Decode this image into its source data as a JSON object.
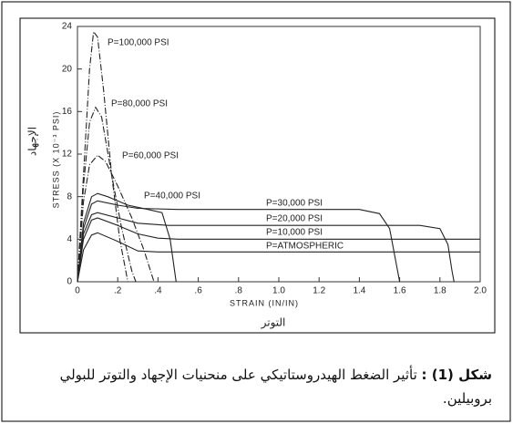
{
  "chart_data": {
    "type": "line",
    "xlabel": "STRAIN (IN/IN)",
    "ylabel": "STRESS (X 10⁻³ PSI)",
    "xlabel_ar": "التوتر",
    "ylabel_ar": "الإجهاد",
    "xlim": [
      0,
      2.0
    ],
    "ylim": [
      0,
      24
    ],
    "xticks": [
      0,
      {
        "value": 0.2,
        "label": ".2"
      },
      {
        "value": 0.4,
        "label": ".4"
      },
      {
        "value": 0.6,
        "label": ".6"
      },
      {
        "value": 0.8,
        "label": ".8"
      },
      {
        "value": 1.0,
        "label": "1.0"
      },
      {
        "value": 1.2,
        "label": "1.2"
      },
      {
        "value": 1.4,
        "label": "1.4"
      },
      {
        "value": 1.6,
        "label": "1.6"
      },
      {
        "value": 1.8,
        "label": "1.8"
      },
      {
        "value": 2.0,
        "label": "2.0"
      }
    ],
    "yticks": [
      0,
      4,
      8,
      12,
      16,
      20,
      24
    ],
    "series": [
      {
        "name": "P=100,000 PSI",
        "color": "#222222",
        "dashed": true,
        "x": [
          0,
          0.03,
          0.06,
          0.08,
          0.1,
          0.13,
          0.17,
          0.21,
          0.25
        ],
        "values": [
          0,
          10,
          20,
          23.5,
          23,
          18,
          10,
          4,
          0
        ]
      },
      {
        "name": "P=80,000 PSI",
        "color": "#222222",
        "dashed": true,
        "x": [
          0,
          0.03,
          0.06,
          0.09,
          0.12,
          0.17,
          0.22,
          0.27,
          0.29
        ],
        "values": [
          0,
          9,
          15,
          16.4,
          15.5,
          10,
          5,
          1,
          0
        ]
      },
      {
        "name": "P=60,000 PSI",
        "color": "#222222",
        "dashed": true,
        "x": [
          0,
          0.03,
          0.06,
          0.1,
          0.14,
          0.2,
          0.27,
          0.33,
          0.38
        ],
        "values": [
          0,
          7.5,
          11,
          11.9,
          11.3,
          9,
          6,
          3,
          0
        ]
      },
      {
        "name": "P=40,000 PSI",
        "color": "#222222",
        "dashed": false,
        "x": [
          0,
          0.03,
          0.07,
          0.1,
          0.15,
          0.25,
          0.35,
          0.42,
          0.46,
          0.49
        ],
        "values": [
          0,
          5.5,
          8,
          8.3,
          8,
          7.2,
          6.8,
          6.5,
          4,
          0
        ]
      },
      {
        "name": "P=30,000 PSI",
        "color": "#222222",
        "dashed": false,
        "x": [
          0,
          0.03,
          0.07,
          0.1,
          0.2,
          0.3,
          0.5,
          1.4,
          1.5,
          1.55,
          1.58,
          1.6
        ],
        "values": [
          0,
          5,
          7.3,
          7.6,
          7.2,
          6.9,
          6.8,
          6.8,
          6.4,
          5,
          2,
          0
        ]
      },
      {
        "name": "P=20,000 PSI",
        "color": "#222222",
        "dashed": false,
        "x": [
          0,
          0.03,
          0.07,
          0.1,
          0.2,
          0.3,
          0.45,
          1.7,
          1.8,
          1.84,
          1.86,
          1.87
        ],
        "values": [
          0,
          4.5,
          6.3,
          6.5,
          6,
          5.5,
          5.3,
          5.3,
          5,
          3.5,
          1,
          0
        ]
      },
      {
        "name": "P=10,000 PSI",
        "color": "#222222",
        "dashed": false,
        "x": [
          0,
          0.03,
          0.07,
          0.1,
          0.2,
          0.3,
          0.4,
          0.5,
          2.0
        ],
        "values": [
          0,
          4,
          5.8,
          6,
          5.3,
          4.5,
          4.1,
          4.0,
          4.0
        ]
      },
      {
        "name": "P=ATMOSPHERIC",
        "color": "#222222",
        "dashed": false,
        "x": [
          0,
          0.03,
          0.07,
          0.1,
          0.2,
          0.3,
          0.4,
          2.0
        ],
        "values": [
          0,
          3,
          4.4,
          4.6,
          3.8,
          2.9,
          2.8,
          2.8
        ]
      }
    ]
  },
  "caption": {
    "label": "شكل (1) :",
    "text": "تأثير الضغط الهيدروستاتيكي على منحنيات الإجهاد والتوتر للبولي بروبيلين."
  }
}
